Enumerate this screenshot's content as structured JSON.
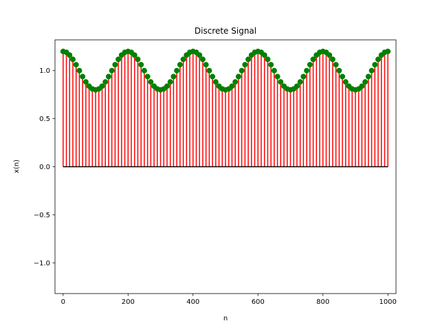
{
  "chart_data": {
    "type": "stem",
    "title": "Discrete Signal",
    "xlabel": "n",
    "ylabel": "x(n)",
    "xlim": [
      -25,
      1025
    ],
    "ylim": [
      -1.32,
      1.32
    ],
    "x_ticks": [
      0,
      200,
      400,
      600,
      800,
      1000
    ],
    "x_tick_labels": [
      "0",
      "200",
      "400",
      "600",
      "800",
      "1000"
    ],
    "y_ticks": [
      -1.0,
      -0.5,
      0.0,
      0.5,
      1.0
    ],
    "y_tick_labels": [
      "−1.0",
      "−0.5",
      "0.0",
      "0.5",
      "1.0"
    ],
    "grid": false,
    "signal": {
      "n_start": 0,
      "n_end": 1000,
      "n_step": 10,
      "expression": "x(n) = cos(2π·0.3·n) + 0.2·cos(2π·n/200)"
    },
    "colors": {
      "stem": "#ff0000",
      "marker": "#008000",
      "baseline": "#000000",
      "axes": "#000000"
    }
  }
}
